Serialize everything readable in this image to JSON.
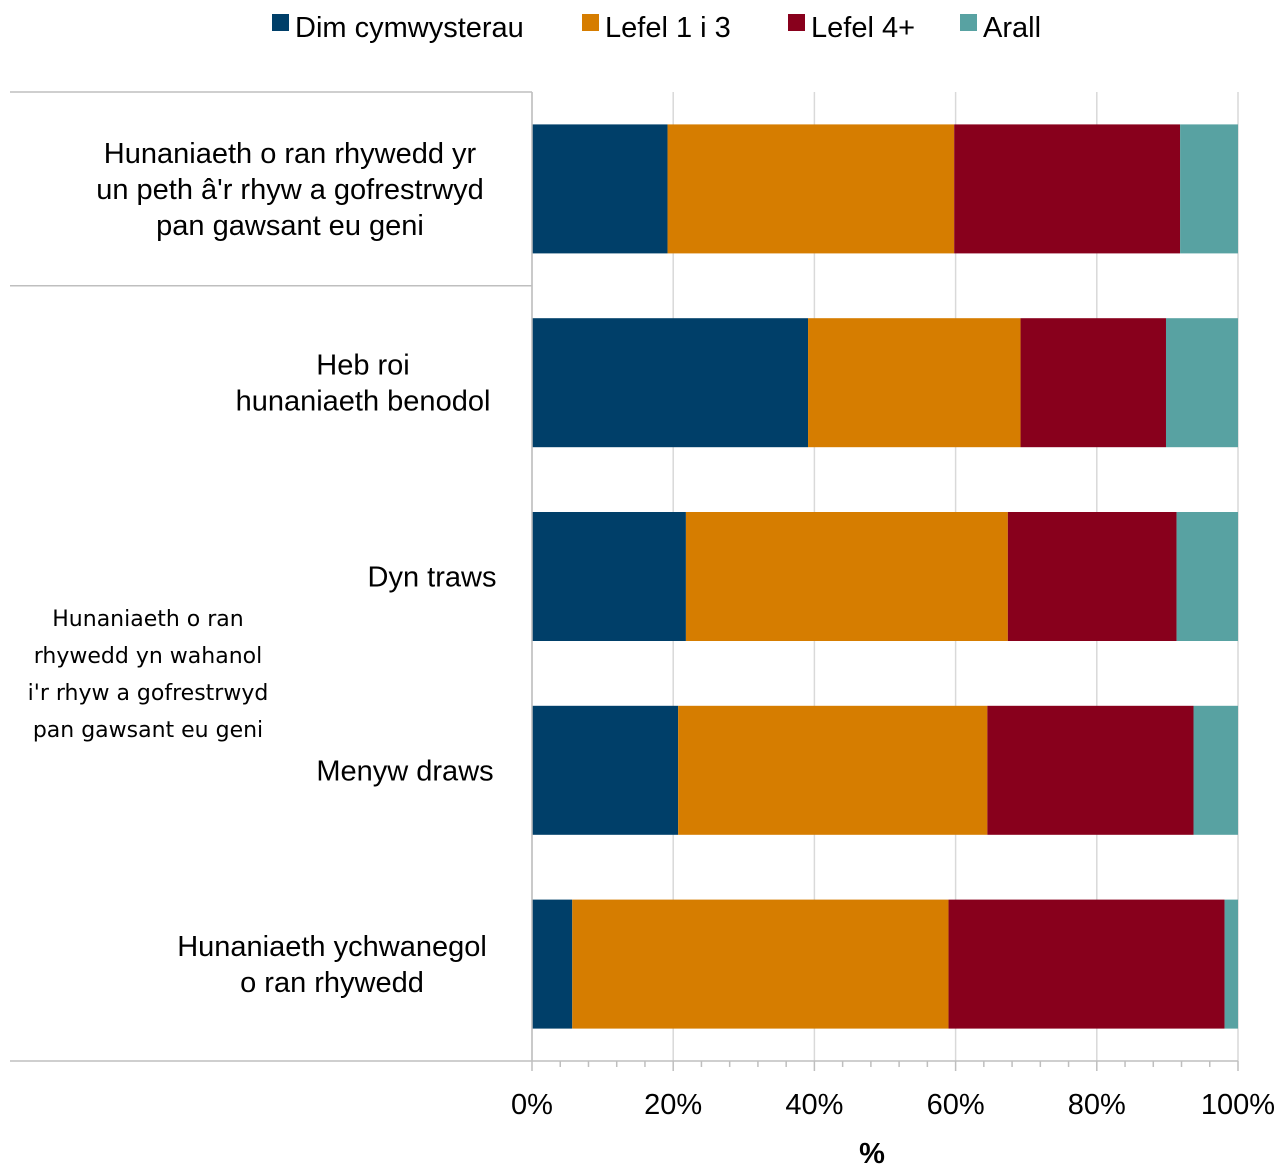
{
  "chart_data": {
    "type": "bar",
    "orientation": "horizontal",
    "stacked": true,
    "xlabel": "%",
    "xlim": [
      0,
      100
    ],
    "x_ticks": [
      "0%",
      "20%",
      "40%",
      "60%",
      "80%",
      "100%"
    ],
    "grid": true,
    "legend_placement": "top",
    "categories": [
      {
        "lines": [
          "Hunaniaeth o ran rhywedd yr",
          "un peth â'r rhyw a gofrestrwyd",
          "pan gawsant eu geni"
        ]
      },
      {
        "lines": [
          "Heb roi",
          "hunaniaeth benodol"
        ]
      },
      {
        "lines": [
          "Dyn traws"
        ]
      },
      {
        "lines": [
          "Menyw draws"
        ]
      },
      {
        "lines": [
          "Hunaniaeth ychwanegol",
          "o ran rhywedd"
        ]
      }
    ],
    "groups": [
      {
        "lines": [
          "Hunaniaeth o ran",
          "rhywedd yn wahanol",
          "i'r rhyw a gofrestrwyd",
          "pan gawsant eu geni"
        ],
        "categories": [
          1,
          2,
          3,
          4
        ]
      }
    ],
    "series": [
      {
        "name": "Dim cymwysterau",
        "color": "#003f69",
        "values": [
          19.2,
          39.1,
          21.8,
          20.7,
          5.7
        ]
      },
      {
        "name": "Lefel 1 i 3",
        "color": "#d67d00",
        "values": [
          40.6,
          30.1,
          45.6,
          43.8,
          53.3
        ]
      },
      {
        "name": "Lefel 4+",
        "color": "#88001c",
        "values": [
          32.0,
          20.6,
          23.9,
          29.2,
          39.1
        ]
      },
      {
        "name": "Arall",
        "color": "#58a2a2",
        "values": [
          8.2,
          10.2,
          8.7,
          6.3,
          1.9
        ]
      }
    ]
  }
}
